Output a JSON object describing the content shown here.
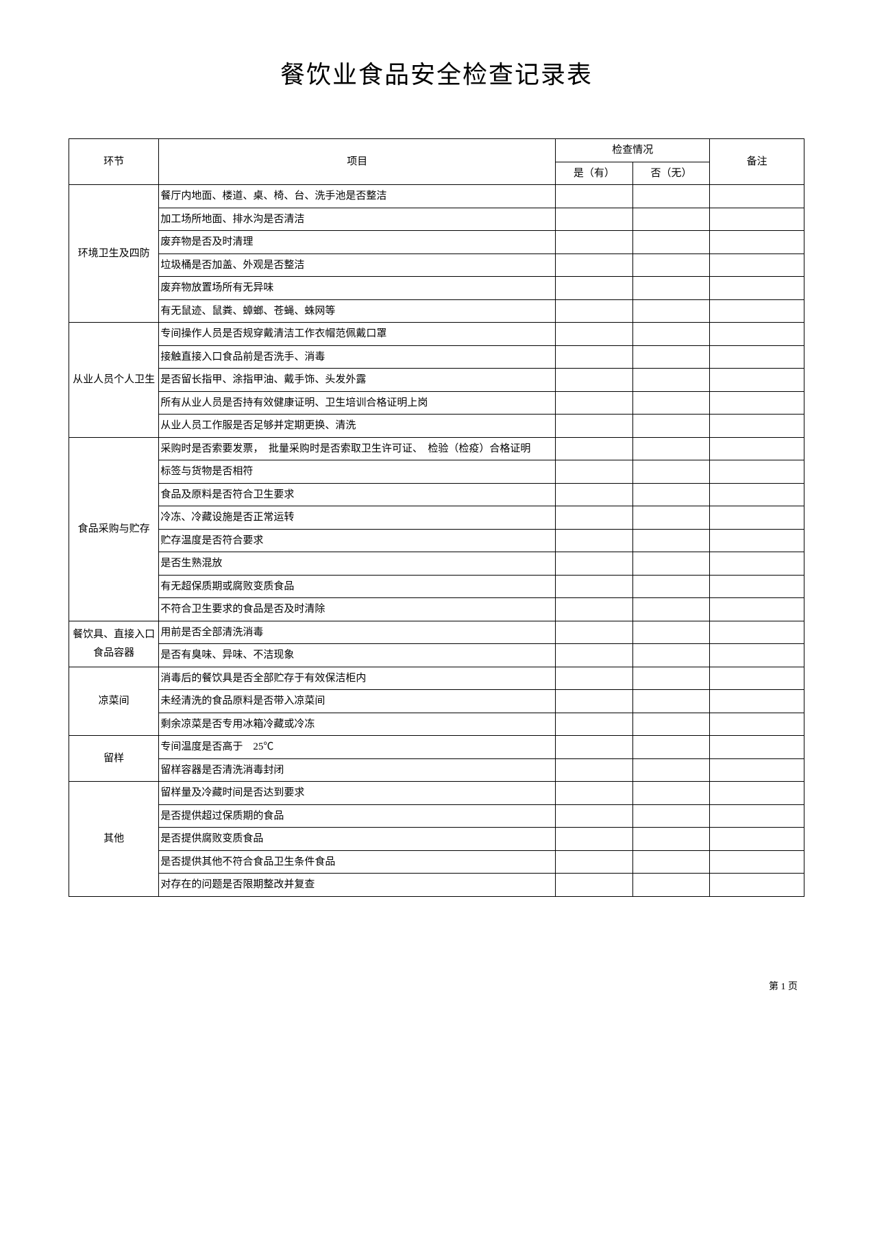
{
  "title": "餐饮业食品安全检查记录表",
  "header": {
    "section": "环节",
    "item": "项目",
    "inspection": "检查情况",
    "yes": "是（有）",
    "no": "否（无）",
    "note": "备注"
  },
  "sections": [
    {
      "name": "环境卫生及四防",
      "items": [
        "餐厅内地面、楼道、桌、椅、台、洗手池是否整洁",
        "加工场所地面、排水沟是否清洁",
        "废弃物是否及时清理",
        "垃圾桶是否加盖、外观是否整洁",
        "废弃物放置场所有无异味",
        "有无鼠迹、鼠粪、蟑螂、苍蝇、蛛网等"
      ]
    },
    {
      "name": "从业人员个人卫生",
      "items": [
        "专间操作人员是否规穿戴清洁工作衣帽范佩戴口罩",
        "接触直接入口食品前是否洗手、消毒",
        "是否留长指甲、涂指甲油、戴手饰、头发外露",
        "所有从业人员是否持有效健康证明、卫生培训合格证明上岗",
        "从业人员工作服是否足够并定期更换、清洗"
      ]
    },
    {
      "name": "食品采购与贮存",
      "items": [
        "采购时是否索要发票，　批量采购时是否索取卫生许可证、　检验（检疫）合格证明",
        "标签与货物是否相符",
        "食品及原料是否符合卫生要求",
        "冷冻、冷藏设施是否正常运转",
        "贮存温度是否符合要求",
        "是否生熟混放",
        "有无超保质期或腐败变质食品",
        "不符合卫生要求的食品是否及时清除"
      ]
    },
    {
      "name": "餐饮具、直接入口食品容器",
      "items": [
        "用前是否全部清洗消毒",
        "是否有臭味、异味、不洁现象"
      ]
    },
    {
      "name": "凉菜间",
      "items": [
        "消毒后的餐饮具是否全部贮存于有效保洁柜内",
        "未经清洗的食品原料是否带入凉菜间",
        "剩余凉菜是否专用冰箱冷藏或冷冻"
      ]
    },
    {
      "name": "留样",
      "items": [
        "专间温度是否高于　25℃",
        "留样容器是否清洗消毒封闭"
      ]
    },
    {
      "name": "其他",
      "items": [
        "留样量及冷藏时间是否达到要求",
        "是否提供超过保质期的食品",
        "是否提供腐败变质食品",
        "是否提供其他不符合食品卫生条件食品",
        "对存在的问题是否限期整改并复查"
      ]
    }
  ],
  "footer": "第 1 页",
  "styling": {
    "font_family": "SimSun",
    "title_fontsize": 36,
    "cell_fontsize": 15,
    "border_color": "#000000",
    "background_color": "#ffffff",
    "text_color": "#000000"
  }
}
